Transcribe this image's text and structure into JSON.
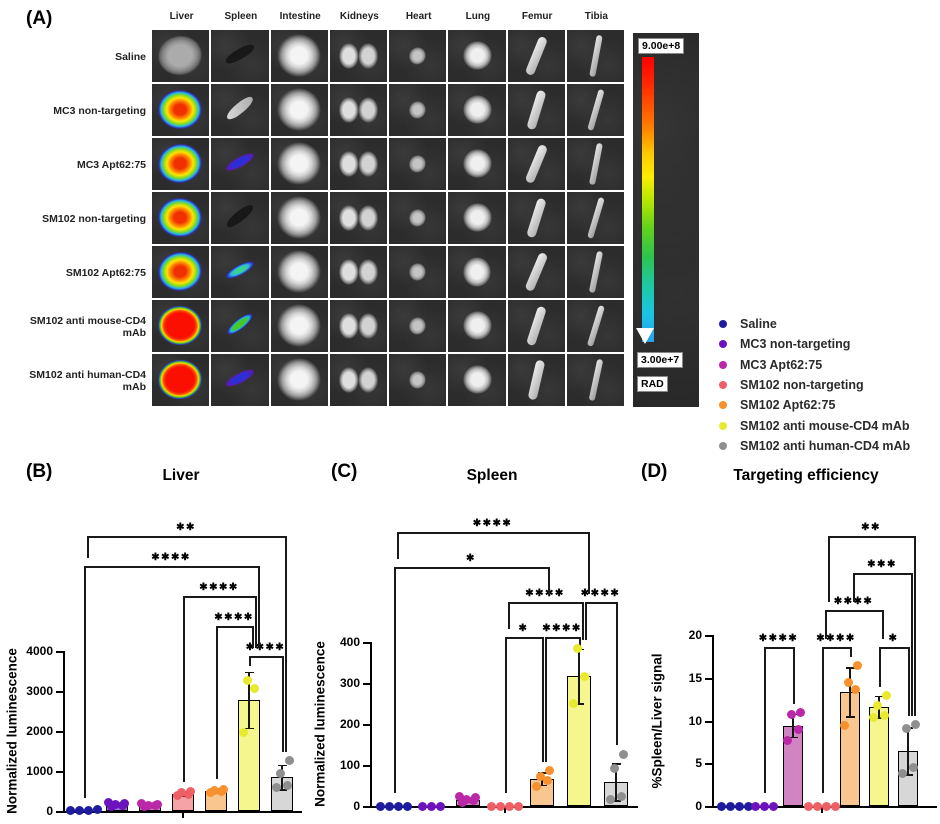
{
  "panel_a": {
    "letter": "(A)",
    "columns": [
      "Liver",
      "Spleen",
      "Intestine",
      "Kidneys",
      "Heart",
      "Lung",
      "Femur",
      "Tibia"
    ],
    "rows": [
      {
        "label": "Saline",
        "liver": "gray",
        "spleen": "dark"
      },
      {
        "label": "MC3 non-targeting",
        "liver": "heat",
        "spleen": "light"
      },
      {
        "label": "MC3 Apt62:75",
        "liver": "heat",
        "spleen": "blue"
      },
      {
        "label": "SM102 non-targeting",
        "liver": "heat",
        "spleen": "dark"
      },
      {
        "label": "SM102 Apt62:75",
        "liver": "heat",
        "spleen": "cyan"
      },
      {
        "label": "SM102 anti mouse-CD4 mAb",
        "liver": "hot",
        "spleen": "green"
      },
      {
        "label": "SM102 anti human-CD4 mAb",
        "liver": "hot",
        "spleen": "blue"
      }
    ],
    "colorbar": {
      "max": "9.00e+8",
      "min": "3.00e+7",
      "unit": "RAD"
    }
  },
  "groups": [
    {
      "name": "Saline",
      "dot": "#1e1b9e",
      "fill": "#5a5ad2"
    },
    {
      "name": "MC3 non-targeting",
      "dot": "#6d13be",
      "fill": "#a36fd6"
    },
    {
      "name": "MC3 Apt62:75",
      "dot": "#ba28a8",
      "fill": "#d084c2"
    },
    {
      "name": "SM102 non-targeting",
      "dot": "#ee5f66",
      "fill": "#f5a3a6"
    },
    {
      "name": "SM102 Apt62:75",
      "dot": "#f6912d",
      "fill": "#f9c68f"
    },
    {
      "name": "SM102 anti mouse-CD4 mAb",
      "dot": "#e9ea2e",
      "fill": "#f5f68e"
    },
    {
      "name": "SM102 anti human-CD4 mAb",
      "dot": "#8f8f8f",
      "fill": "#d7d7d7"
    }
  ],
  "chart_data": [
    {
      "panel": "(B)",
      "type": "bar",
      "title": "Liver",
      "ylabel": "Normalized luminescence",
      "ylim": [
        0,
        4000
      ],
      "yticks": [
        0,
        1000,
        2000,
        3000,
        4000
      ],
      "categories": [
        "Saline",
        "MC3 non-targeting",
        "MC3 Apt62:75",
        "SM102 non-targeting",
        "SM102 Apt62:75",
        "SM102 anti mouse-CD4 mAb",
        "SM102 anti human-CD4 mAb"
      ],
      "values": [
        25,
        160,
        150,
        430,
        510,
        2770,
        840
      ],
      "sd": [
        0,
        45,
        40,
        70,
        60,
        710,
        320
      ],
      "points": [
        [
          15,
          20,
          25,
          30
        ],
        [
          120,
          145,
          165,
          185,
          205
        ],
        [
          105,
          130,
          150,
          170,
          185
        ],
        [
          380,
          420,
          455,
          490
        ],
        [
          470,
          500,
          525,
          550
        ],
        [
          1960,
          3060,
          3260
        ],
        [
          590,
          630,
          950,
          1260
        ]
      ],
      "significance": [
        {
          "groups": [
            5,
            6
          ],
          "label": "****",
          "level": 0
        },
        {
          "groups": [
            4,
            5
          ],
          "label": "****",
          "level": 1
        },
        {
          "groups": [
            3,
            5
          ],
          "label": "****",
          "level": 2
        },
        {
          "groups": [
            0,
            5
          ],
          "label": "****",
          "level": 3
        },
        {
          "groups": [
            0,
            6
          ],
          "label": "**",
          "level": 4
        }
      ]
    },
    {
      "panel": "(C)",
      "type": "bar",
      "title": "Spleen",
      "ylabel": "Normalized luminescence",
      "ylim": [
        0,
        400
      ],
      "yticks": [
        0,
        100,
        200,
        300,
        400
      ],
      "categories": [
        "Saline",
        "MC3 non-targeting",
        "MC3 Apt62:75",
        "SM102 non-targeting",
        "SM102 Apt62:75",
        "SM102 anti mouse-CD4 mAb",
        "SM102 anti human-CD4 mAb"
      ],
      "values": [
        0,
        0,
        14,
        0,
        66,
        316,
        58
      ],
      "sd": [
        0,
        0,
        6,
        0,
        16,
        68,
        46
      ],
      "points": [
        [
          0,
          0,
          0,
          0
        ],
        [
          0,
          0,
          0
        ],
        [
          8,
          13,
          17,
          20,
          22
        ],
        [
          0,
          0,
          0,
          0
        ],
        [
          48,
          62,
          73,
          86
        ],
        [
          251,
          316,
          384
        ],
        [
          16,
          24,
          92,
          126
        ]
      ],
      "significance": [
        {
          "groups": [
            3,
            4
          ],
          "label": "*",
          "level": 0
        },
        {
          "groups": [
            4,
            5
          ],
          "label": "****",
          "level": 0
        },
        {
          "groups": [
            3,
            5
          ],
          "label": "****",
          "level": 1
        },
        {
          "groups": [
            5,
            6
          ],
          "label": "****",
          "level": 1
        },
        {
          "groups": [
            0,
            4
          ],
          "label": "*",
          "level": 2
        },
        {
          "groups": [
            0,
            5
          ],
          "label": "****",
          "level": 3
        }
      ]
    },
    {
      "panel": "(D)",
      "type": "bar",
      "title": "Targeting efficiency",
      "ylabel": "%Spleen/Liver signal",
      "ylim": [
        0,
        20
      ],
      "yticks": [
        0,
        5,
        10,
        15,
        20
      ],
      "categories": [
        "Saline",
        "MC3 non-targeting",
        "MC3 Apt62:75",
        "SM102 non-targeting",
        "SM102 Apt62:75",
        "SM102 anti mouse-CD4 mAb",
        "SM102 anti human-CD4 mAb"
      ],
      "values": [
        0,
        0,
        9.4,
        0,
        13.3,
        11.6,
        6.4
      ],
      "sd": [
        0,
        0,
        1.4,
        0,
        2.9,
        1.3,
        2.8
      ],
      "points": [
        [
          0,
          0,
          0,
          0
        ],
        [
          0,
          0,
          0
        ],
        [
          7.7,
          9.0,
          10.7,
          10.9
        ],
        [
          0,
          0,
          0,
          0
        ],
        [
          9.4,
          13.6,
          14.5,
          16.4
        ],
        [
          10.4,
          10.6,
          11.7,
          12.9
        ],
        [
          3.8,
          4.5,
          9.1,
          9.5
        ]
      ],
      "significance": [
        {
          "groups": [
            1,
            2
          ],
          "label": "****",
          "level": 0
        },
        {
          "groups": [
            3,
            4
          ],
          "label": "****",
          "level": 0
        },
        {
          "groups": [
            5,
            6
          ],
          "label": "*",
          "level": 0
        },
        {
          "groups": [
            3,
            5
          ],
          "label": "****",
          "level": 1
        },
        {
          "groups": [
            4,
            6
          ],
          "label": "***",
          "level": 2
        },
        {
          "groups": [
            3,
            6
          ],
          "label": "**",
          "level": 3
        }
      ]
    }
  ]
}
